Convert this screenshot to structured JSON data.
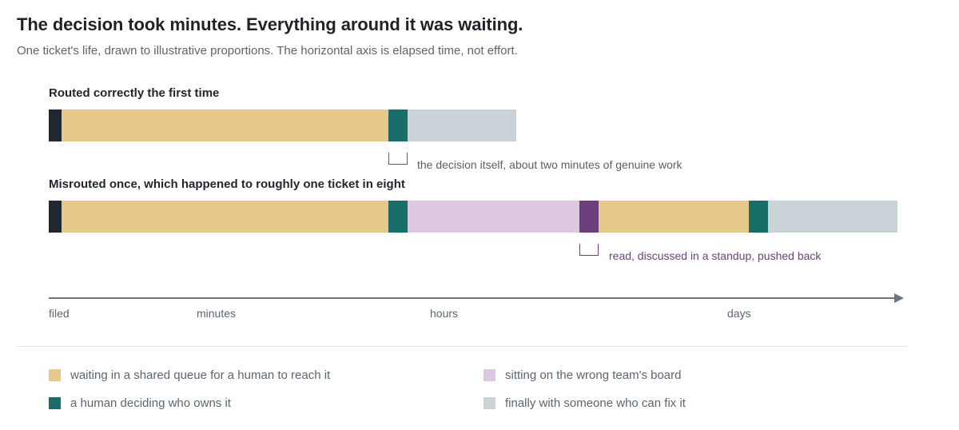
{
  "title": "The decision took minutes. Everything around it was waiting.",
  "subtitle": "One ticket's life, drawn to illustrative proportions. The horizontal axis is elapsed time, not effort.",
  "colors": {
    "filed": "#1f2733",
    "waiting": "#e8c88a",
    "deciding": "#1a6e6a",
    "wrong_board": "#dcc8e0",
    "read_discussed": "#6d3f7c",
    "fixing": "#c9d3d8",
    "annotation_teal": "#55606b",
    "annotation_purple": "#6d3f7c"
  },
  "rows": [
    {
      "heading": "Routed correctly the first time",
      "segments": [
        "filed",
        "waiting",
        "deciding",
        "fixing"
      ],
      "annotation": "the decision itself, about two minutes of genuine work",
      "annotation_color": "annotation_teal"
    },
    {
      "heading": "Misrouted once, which happened to roughly one ticket in eight",
      "segments": [
        "filed",
        "waiting",
        "deciding",
        "wrong_board",
        "read_discussed",
        "waiting",
        "deciding",
        "fixing"
      ],
      "annotation": "read, discussed in a standup, pushed back",
      "annotation_color": "annotation_purple"
    }
  ],
  "axis": {
    "labels": [
      "filed",
      "minutes",
      "hours",
      "days"
    ]
  },
  "legend": [
    {
      "key": "waiting",
      "label": "waiting in a shared queue for a human to reach it"
    },
    {
      "key": "wrong_board",
      "label": "sitting on the wrong team's board"
    },
    {
      "key": "deciding",
      "label": "a human deciding who owns it"
    },
    {
      "key": "fixing",
      "label": "finally with someone who can fix it"
    }
  ]
}
